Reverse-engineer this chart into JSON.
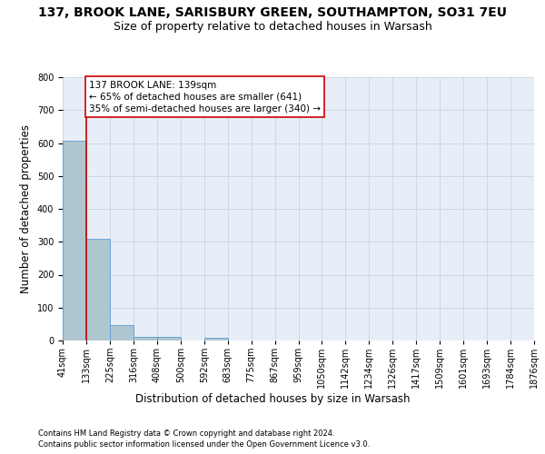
{
  "title": "137, BROOK LANE, SARISBURY GREEN, SOUTHAMPTON, SO31 7EU",
  "subtitle": "Size of property relative to detached houses in Warsash",
  "xlabel": "Distribution of detached houses by size in Warsash",
  "ylabel": "Number of detached properties",
  "footnote1": "Contains HM Land Registry data © Crown copyright and database right 2024.",
  "footnote2": "Contains public sector information licensed under the Open Government Licence v3.0.",
  "bin_labels": [
    "41sqm",
    "133sqm",
    "225sqm",
    "316sqm",
    "408sqm",
    "500sqm",
    "592sqm",
    "683sqm",
    "775sqm",
    "867sqm",
    "959sqm",
    "1050sqm",
    "1142sqm",
    "1234sqm",
    "1326sqm",
    "1417sqm",
    "1509sqm",
    "1601sqm",
    "1693sqm",
    "1784sqm",
    "1876sqm"
  ],
  "bar_heights": [
    607,
    310,
    48,
    11,
    12,
    0,
    8,
    0,
    0,
    0,
    0,
    0,
    0,
    0,
    0,
    0,
    0,
    0,
    0,
    0
  ],
  "bar_color": "#aec6cf",
  "bar_edgecolor": "#5b9bd5",
  "property_line_x": 1,
  "annotation_line1": "137 BROOK LANE: 139sqm",
  "annotation_line2": "← 65% of detached houses are smaller (641)",
  "annotation_line3": "35% of semi-detached houses are larger (340) →",
  "ylim": [
    0,
    800
  ],
  "yticks": [
    0,
    100,
    200,
    300,
    400,
    500,
    600,
    700,
    800
  ],
  "grid_color": "#c8d4e3",
  "bg_color": "#e8eef7",
  "red_line_color": "#cc0000",
  "annotation_box_color": "#cc0000",
  "title_fontsize": 10,
  "subtitle_fontsize": 9,
  "axis_label_fontsize": 8.5,
  "tick_fontsize": 7,
  "annotation_fontsize": 7.5,
  "footnote_fontsize": 6
}
